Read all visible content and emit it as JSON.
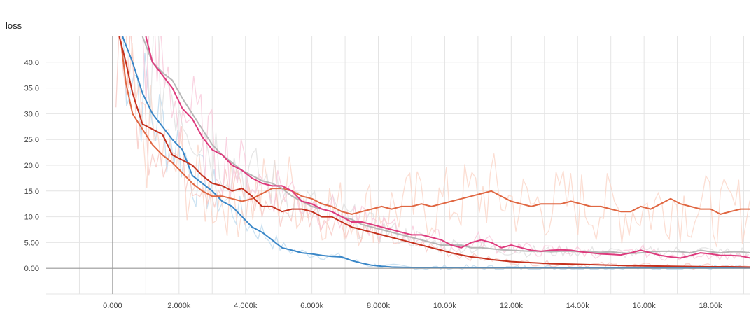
{
  "chart_data": {
    "type": "line",
    "title": "loss",
    "xlabel": "",
    "ylabel": "",
    "xlim": [
      -2000,
      19200
    ],
    "ylim": [
      -5,
      45
    ],
    "grid": true,
    "x_tick_values": [
      0,
      2000,
      4000,
      6000,
      8000,
      10000,
      12000,
      14000,
      16000,
      18000
    ],
    "x_tick_labels": [
      "0.000",
      "2.000k",
      "4.000k",
      "6.000k",
      "8.000k",
      "10.00k",
      "12.00k",
      "14.00k",
      "16.00k",
      "18.00k"
    ],
    "y_tick_values": [
      0,
      5,
      10,
      15,
      20,
      25,
      30,
      35,
      40
    ],
    "y_tick_labels": [
      "0.00",
      "5.00",
      "10.0",
      "15.0",
      "20.0",
      "25.0",
      "30.0",
      "35.0",
      "40.0"
    ],
    "series": [
      {
        "color": "#3a87c8",
        "raw_color": "#b9d8ee",
        "points": [
          [
            300,
            45
          ],
          [
            600,
            40
          ],
          [
            900,
            34
          ],
          [
            1200,
            30
          ],
          [
            1500,
            27.5
          ],
          [
            1800,
            25
          ],
          [
            2100,
            23
          ],
          [
            2400,
            18
          ],
          [
            2700,
            16.5
          ],
          [
            3000,
            15
          ],
          [
            3300,
            13
          ],
          [
            3600,
            12
          ],
          [
            3900,
            10
          ],
          [
            4200,
            8
          ],
          [
            4500,
            7
          ],
          [
            4800,
            5.5
          ],
          [
            5100,
            4
          ],
          [
            5400,
            3.5
          ],
          [
            5700,
            3
          ],
          [
            6000,
            2.8
          ],
          [
            6300,
            2.5
          ],
          [
            6600,
            2.3
          ],
          [
            6900,
            2.2
          ],
          [
            7200,
            1.5
          ],
          [
            7500,
            1
          ],
          [
            7800,
            0.6
          ],
          [
            8100,
            0.4
          ],
          [
            8400,
            0.25
          ],
          [
            9000,
            0.15
          ],
          [
            10000,
            0.1
          ],
          [
            12000,
            0.08
          ],
          [
            14000,
            0.07
          ],
          [
            16000,
            0.06
          ],
          [
            19200,
            0.05
          ]
        ]
      },
      {
        "color": "#e06742",
        "raw_color": "#fbd3c4",
        "points": [
          [
            250,
            44
          ],
          [
            400,
            36
          ],
          [
            600,
            30
          ],
          [
            900,
            27
          ],
          [
            1200,
            24
          ],
          [
            1500,
            22
          ],
          [
            1800,
            20.5
          ],
          [
            2100,
            18.5
          ],
          [
            2400,
            16.5
          ],
          [
            2700,
            15
          ],
          [
            3000,
            14
          ],
          [
            3300,
            14
          ],
          [
            3600,
            13.5
          ],
          [
            3900,
            13
          ],
          [
            4200,
            13.5
          ],
          [
            4500,
            14.5
          ],
          [
            4800,
            15.5
          ],
          [
            5100,
            15.5
          ],
          [
            5400,
            15
          ],
          [
            5700,
            14
          ],
          [
            6000,
            13.5
          ],
          [
            6300,
            12.5
          ],
          [
            6600,
            12
          ],
          [
            6900,
            11
          ],
          [
            7200,
            10.5
          ],
          [
            7500,
            11
          ],
          [
            7800,
            11.5
          ],
          [
            8100,
            12
          ],
          [
            8400,
            11.5
          ],
          [
            8700,
            12
          ],
          [
            9000,
            12
          ],
          [
            9300,
            12.5
          ],
          [
            9600,
            12
          ],
          [
            9900,
            12.5
          ],
          [
            10200,
            13
          ],
          [
            10500,
            13.5
          ],
          [
            10800,
            14
          ],
          [
            11100,
            14.5
          ],
          [
            11400,
            15
          ],
          [
            11700,
            14
          ],
          [
            12000,
            13
          ],
          [
            12300,
            12.5
          ],
          [
            12600,
            12
          ],
          [
            12900,
            12.5
          ],
          [
            13200,
            12.5
          ],
          [
            13500,
            12.5
          ],
          [
            13800,
            13
          ],
          [
            14100,
            12.5
          ],
          [
            14400,
            12
          ],
          [
            14700,
            12
          ],
          [
            15000,
            11.5
          ],
          [
            15300,
            11
          ],
          [
            15600,
            11
          ],
          [
            15900,
            12
          ],
          [
            16200,
            11.5
          ],
          [
            16500,
            12.5
          ],
          [
            16800,
            13.5
          ],
          [
            17100,
            12.5
          ],
          [
            17400,
            12
          ],
          [
            17700,
            11.5
          ],
          [
            18000,
            11.5
          ],
          [
            18300,
            10.5
          ],
          [
            18600,
            11
          ],
          [
            18900,
            11.5
          ],
          [
            19200,
            11.5
          ]
        ]
      },
      {
        "color": "#c5311e",
        "raw_color": "#f7c5c0",
        "points": [
          [
            200,
            45
          ],
          [
            400,
            40
          ],
          [
            600,
            34
          ],
          [
            900,
            28
          ],
          [
            1200,
            27
          ],
          [
            1500,
            26
          ],
          [
            1800,
            22
          ],
          [
            2100,
            21
          ],
          [
            2400,
            20
          ],
          [
            2700,
            18
          ],
          [
            3000,
            16.5
          ],
          [
            3300,
            16
          ],
          [
            3600,
            15
          ],
          [
            3900,
            15.5
          ],
          [
            4200,
            14
          ],
          [
            4500,
            12
          ],
          [
            4800,
            12
          ],
          [
            5100,
            11
          ],
          [
            5400,
            11.5
          ],
          [
            5700,
            11.5
          ],
          [
            6000,
            11
          ],
          [
            6300,
            10
          ],
          [
            6600,
            10
          ],
          [
            6900,
            9
          ],
          [
            7200,
            8
          ],
          [
            7500,
            7.5
          ],
          [
            7800,
            7
          ],
          [
            8100,
            6.5
          ],
          [
            8400,
            6
          ],
          [
            8700,
            5.5
          ],
          [
            9000,
            5
          ],
          [
            9300,
            4.5
          ],
          [
            9600,
            4
          ],
          [
            9900,
            3.5
          ],
          [
            10200,
            3
          ],
          [
            10500,
            2.6
          ],
          [
            10800,
            2.2
          ],
          [
            11100,
            2
          ],
          [
            11400,
            1.7
          ],
          [
            11700,
            1.5
          ],
          [
            12000,
            1.3
          ],
          [
            12600,
            1.1
          ],
          [
            13200,
            0.9
          ],
          [
            13800,
            0.8
          ],
          [
            14400,
            0.7
          ],
          [
            15000,
            0.6
          ],
          [
            15600,
            0.5
          ],
          [
            16200,
            0.45
          ],
          [
            16800,
            0.4
          ],
          [
            17400,
            0.35
          ],
          [
            18000,
            0.3
          ],
          [
            18600,
            0.3
          ],
          [
            19200,
            0.25
          ]
        ]
      },
      {
        "color": "#b7b7b7",
        "raw_color": "#dedede",
        "points": [
          [
            900,
            45
          ],
          [
            1200,
            40
          ],
          [
            1500,
            38
          ],
          [
            1800,
            36.5
          ],
          [
            2100,
            33
          ],
          [
            2400,
            30
          ],
          [
            2700,
            27
          ],
          [
            3000,
            24
          ],
          [
            3300,
            22
          ],
          [
            3600,
            20.5
          ],
          [
            3900,
            19
          ],
          [
            4200,
            18
          ],
          [
            4500,
            17
          ],
          [
            4800,
            16.5
          ],
          [
            5100,
            15.5
          ],
          [
            5400,
            14
          ],
          [
            5700,
            13
          ],
          [
            6000,
            12
          ],
          [
            6300,
            11.5
          ],
          [
            6600,
            11
          ],
          [
            6900,
            10
          ],
          [
            7200,
            9.5
          ],
          [
            7500,
            8.5
          ],
          [
            7800,
            8
          ],
          [
            8100,
            7.5
          ],
          [
            8400,
            7
          ],
          [
            8700,
            6.5
          ],
          [
            9000,
            6
          ],
          [
            9300,
            5.5
          ],
          [
            9600,
            5
          ],
          [
            9900,
            4.5
          ],
          [
            10200,
            4.5
          ],
          [
            10500,
            4.5
          ],
          [
            10800,
            4
          ],
          [
            11100,
            4
          ],
          [
            11400,
            3.8
          ],
          [
            11700,
            3.6
          ],
          [
            12000,
            3.5
          ],
          [
            12300,
            3.4
          ],
          [
            12600,
            3.3
          ],
          [
            12900,
            3.3
          ],
          [
            13200,
            3.2
          ],
          [
            13500,
            3.3
          ],
          [
            13800,
            3.3
          ],
          [
            14100,
            3.2
          ],
          [
            14400,
            3.2
          ],
          [
            14700,
            3.1
          ],
          [
            15000,
            3.2
          ],
          [
            15300,
            3
          ],
          [
            15600,
            2.9
          ],
          [
            15900,
            3
          ],
          [
            16200,
            3.2
          ],
          [
            16500,
            3.3
          ],
          [
            16800,
            3.3
          ],
          [
            17100,
            3.2
          ],
          [
            17400,
            3
          ],
          [
            17700,
            3.5
          ],
          [
            18000,
            3.2
          ],
          [
            18300,
            3
          ],
          [
            18600,
            3.2
          ],
          [
            18900,
            3.2
          ],
          [
            19200,
            3
          ]
        ]
      },
      {
        "color": "#de3a7d",
        "raw_color": "#f8c6d8",
        "points": [
          [
            1000,
            45
          ],
          [
            1200,
            40
          ],
          [
            1500,
            37.5
          ],
          [
            1800,
            35
          ],
          [
            2100,
            31
          ],
          [
            2400,
            29
          ],
          [
            2700,
            25.5
          ],
          [
            3000,
            23
          ],
          [
            3300,
            22
          ],
          [
            3600,
            20
          ],
          [
            3900,
            19
          ],
          [
            4200,
            17.5
          ],
          [
            4500,
            16.5
          ],
          [
            4800,
            16
          ],
          [
            5100,
            16
          ],
          [
            5400,
            15
          ],
          [
            5700,
            13
          ],
          [
            6000,
            12.5
          ],
          [
            6300,
            11.5
          ],
          [
            6600,
            11
          ],
          [
            6900,
            10
          ],
          [
            7200,
            9
          ],
          [
            7500,
            9
          ],
          [
            7800,
            8.5
          ],
          [
            8100,
            8
          ],
          [
            8400,
            7.5
          ],
          [
            8700,
            7
          ],
          [
            9000,
            6.5
          ],
          [
            9300,
            6.5
          ],
          [
            9600,
            6
          ],
          [
            9900,
            5.5
          ],
          [
            10200,
            4.5
          ],
          [
            10500,
            4
          ],
          [
            10800,
            5
          ],
          [
            11100,
            5.5
          ],
          [
            11400,
            5
          ],
          [
            11700,
            4
          ],
          [
            12000,
            4.5
          ],
          [
            12300,
            4
          ],
          [
            12600,
            3.5
          ],
          [
            12900,
            3.3
          ],
          [
            13200,
            3.5
          ],
          [
            13500,
            3.6
          ],
          [
            13800,
            3.5
          ],
          [
            14100,
            3.2
          ],
          [
            14400,
            3
          ],
          [
            14700,
            2.8
          ],
          [
            15000,
            2.7
          ],
          [
            15300,
            2.6
          ],
          [
            15600,
            3
          ],
          [
            15900,
            3.5
          ],
          [
            16200,
            3
          ],
          [
            16500,
            2.5
          ],
          [
            16800,
            2.2
          ],
          [
            17100,
            2
          ],
          [
            17400,
            2.5
          ],
          [
            17700,
            3
          ],
          [
            18000,
            2.8
          ],
          [
            18300,
            2.5
          ],
          [
            18600,
            2.5
          ],
          [
            18900,
            2.4
          ],
          [
            19200,
            2
          ]
        ]
      }
    ]
  }
}
